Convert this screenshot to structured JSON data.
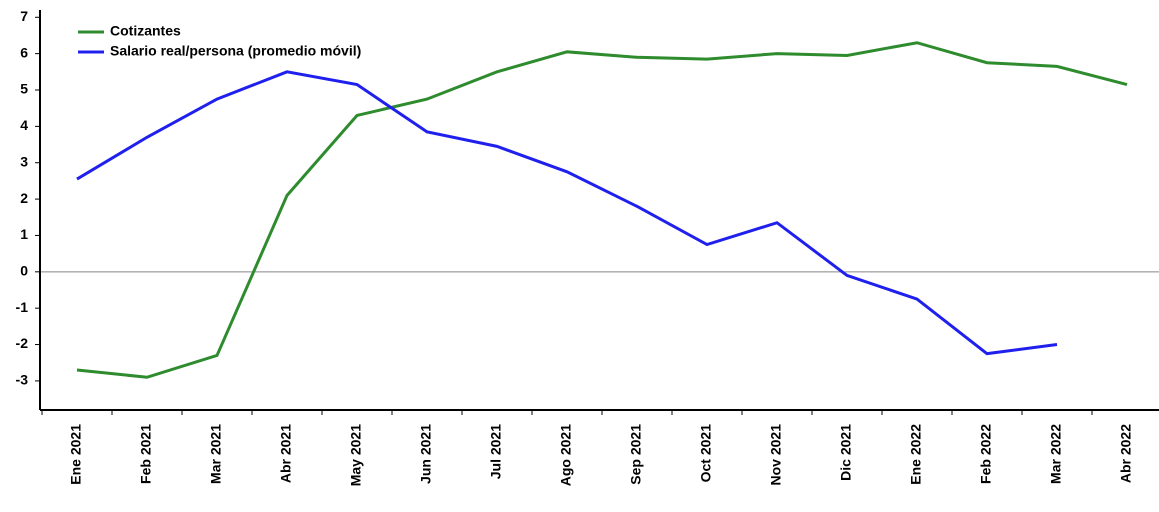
{
  "chart_data": {
    "type": "line",
    "categories": [
      "Ene 2021",
      "Feb 2021",
      "Mar 2021",
      "Abr 2021",
      "May 2021",
      "Jun 2021",
      "Jul 2021",
      "Ago 2021",
      "Sep 2021",
      "Oct 2021",
      "Nov 2021",
      "Dic 2021",
      "Ene 2022",
      "Feb 2022",
      "Mar 2022",
      "Abr 2022"
    ],
    "series": [
      {
        "name": "Cotizantes",
        "color": "#2e8b2e",
        "values": [
          -2.7,
          -2.9,
          -2.3,
          2.1,
          4.3,
          4.75,
          5.5,
          6.05,
          5.9,
          5.85,
          6.0,
          5.95,
          6.3,
          5.75,
          5.65,
          5.15
        ]
      },
      {
        "name": "Salario real/persona (promedio móvil)",
        "color": "#2020ee",
        "values": [
          2.55,
          3.7,
          4.75,
          5.5,
          5.15,
          3.85,
          3.45,
          2.75,
          1.8,
          0.75,
          1.35,
          -0.1,
          -0.75,
          -2.25,
          -2.0,
          null
        ]
      }
    ],
    "ylim": [
      -3.8,
      7.2
    ],
    "yticks": [
      -3,
      -2,
      -1,
      0,
      1,
      2,
      3,
      4,
      5,
      6,
      7
    ],
    "legend": "upper left"
  }
}
